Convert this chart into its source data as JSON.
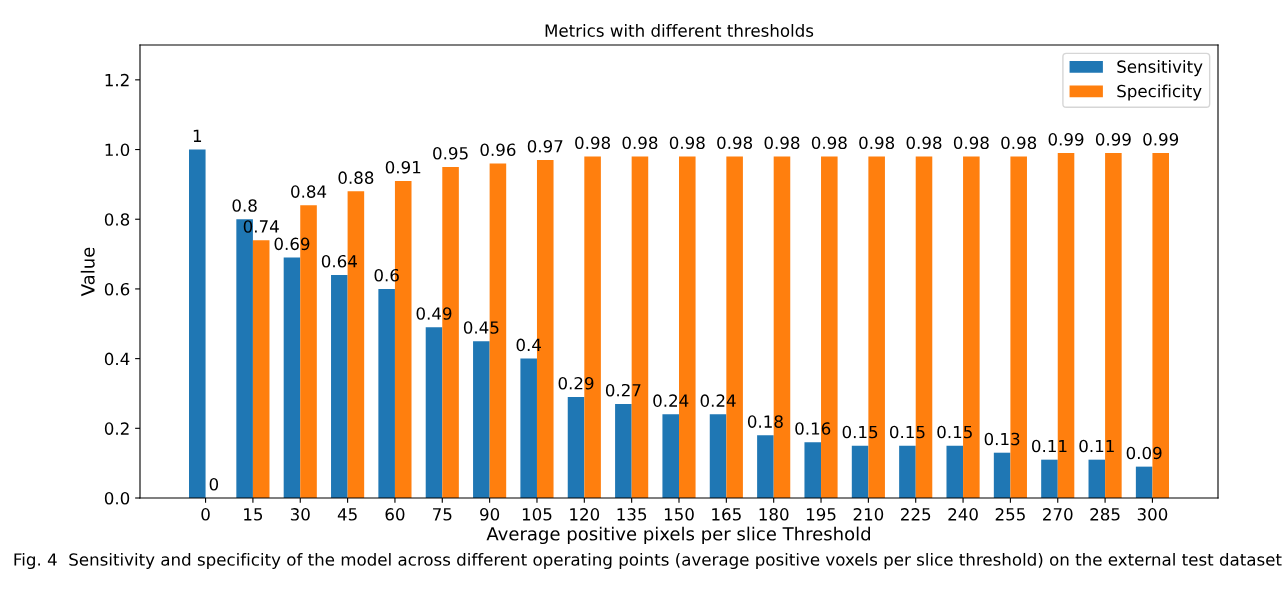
{
  "chart_data": {
    "type": "bar",
    "title": "Metrics with different thresholds",
    "xlabel": "Average positive pixels per slice Threshold",
    "ylabel": "Value",
    "categories": [
      "0",
      "15",
      "30",
      "45",
      "60",
      "75",
      "90",
      "105",
      "120",
      "135",
      "150",
      "165",
      "180",
      "195",
      "210",
      "225",
      "240",
      "255",
      "270",
      "285",
      "300"
    ],
    "series": [
      {
        "name": "Sensitivity",
        "color": "#1f77b4",
        "values": [
          1,
          0.8,
          0.69,
          0.64,
          0.6,
          0.49,
          0.45,
          0.4,
          0.29,
          0.27,
          0.24,
          0.24,
          0.18,
          0.16,
          0.15,
          0.15,
          0.15,
          0.13,
          0.11,
          0.11,
          0.09
        ]
      },
      {
        "name": "Specificity",
        "color": "#ff7f0e",
        "values": [
          0,
          0.74,
          0.84,
          0.88,
          0.91,
          0.95,
          0.96,
          0.97,
          0.98,
          0.98,
          0.98,
          0.98,
          0.98,
          0.98,
          0.98,
          0.98,
          0.98,
          0.98,
          0.99,
          0.99,
          0.99
        ]
      }
    ],
    "ylim": [
      0,
      1.3
    ],
    "yticks": [
      {
        "value": 0,
        "label": "0.0"
      },
      0.2,
      0.4,
      0.6,
      0.8,
      {
        "value": 1,
        "label": "1.0"
      },
      1.2
    ],
    "data_labels": true,
    "legend": "top right",
    "grid": false,
    "annotations": [
      "Fig. 4  Sensitivity and specificity of the model across different operating points (average positive voxels per slice threshold) on the external test dataset"
    ]
  }
}
